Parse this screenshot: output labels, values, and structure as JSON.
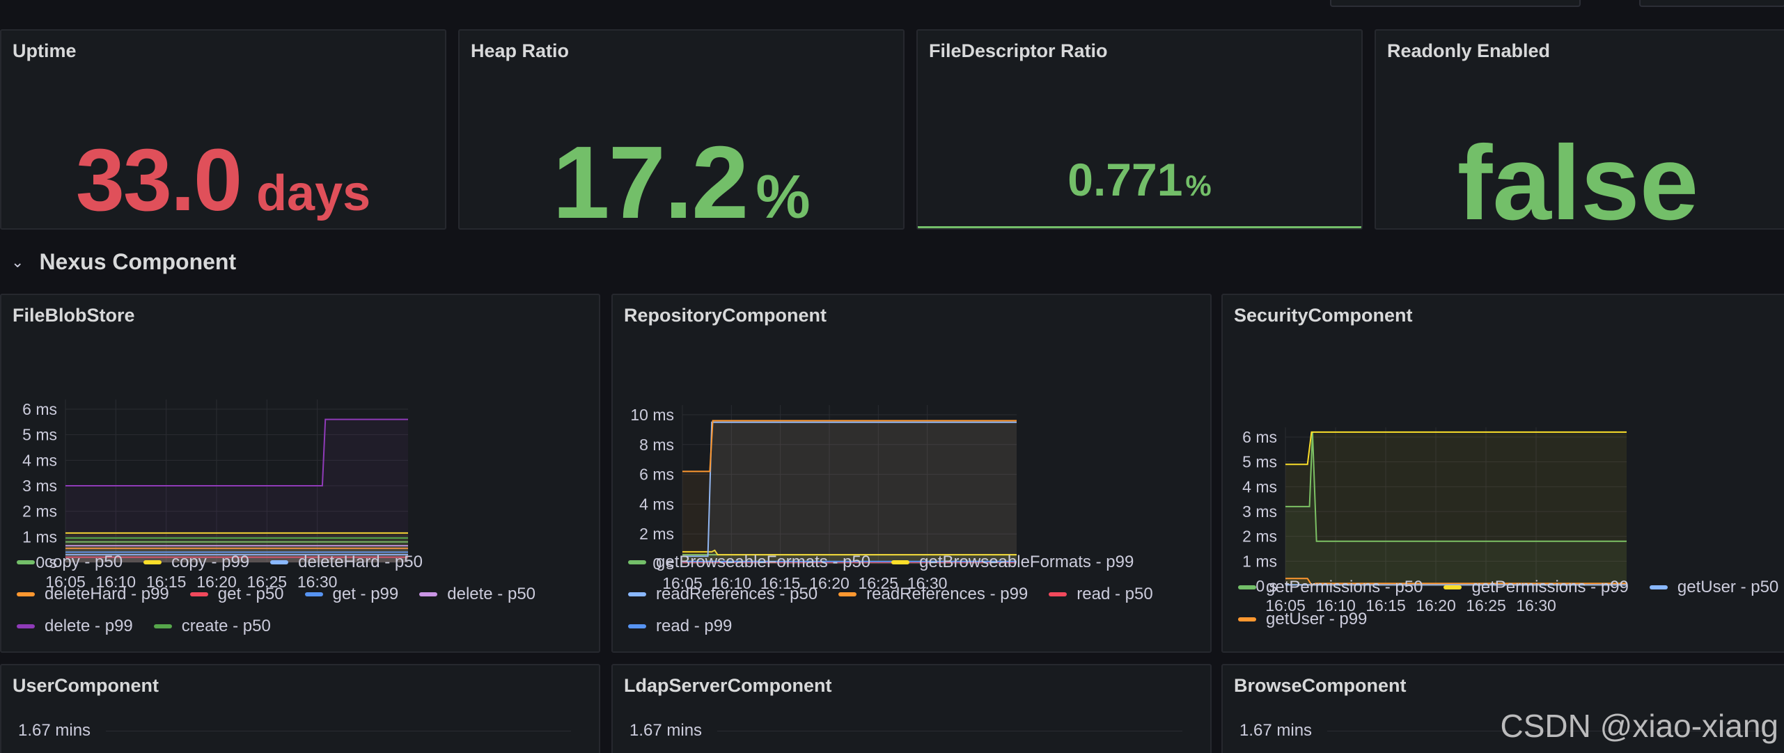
{
  "stats": [
    {
      "title": "Uptime",
      "value": "33.0",
      "unit": "days",
      "color": "#e0505a"
    },
    {
      "title": "Heap Ratio",
      "value": "17.2",
      "unit": "%",
      "color": "#73bf69"
    },
    {
      "title": "FileDescriptor Ratio",
      "value": "0.771",
      "unit": "%",
      "color": "#73bf69"
    },
    {
      "title": "Readonly Enabled",
      "value": "false",
      "unit": "",
      "color": "#73bf69"
    }
  ],
  "row": {
    "title": "Nexus Component"
  },
  "panels": [
    {
      "title": "FileBlobStore",
      "chart_data": {
        "type": "line",
        "x": [
          "16:05",
          "16:10",
          "16:15",
          "16:20",
          "16:25",
          "16:30"
        ],
        "yticks": [
          "6 ms",
          "5 ms",
          "4 ms",
          "3 ms",
          "2 ms",
          "1 ms",
          "0 s"
        ],
        "ylim": [
          0,
          6
        ],
        "xrange_minutes": [
          0,
          30
        ],
        "series": [
          {
            "name": "copy - p50",
            "color": "#73bf69",
            "points": [
              [
                0,
                0.8
              ],
              [
                30,
                0.8
              ]
            ]
          },
          {
            "name": "copy - p99",
            "color": "#fade2a",
            "points": [
              [
                0,
                1.15
              ],
              [
                30,
                1.15
              ]
            ]
          },
          {
            "name": "deleteHard - p50",
            "color": "#8ab8ff",
            "points": [
              [
                0,
                0.3
              ],
              [
                30,
                0.3
              ]
            ]
          },
          {
            "name": "deleteHard - p99",
            "color": "#ff9830",
            "points": [
              [
                0,
                0.55
              ],
              [
                30,
                0.55
              ]
            ]
          },
          {
            "name": "get - p50",
            "color": "#f2495c",
            "points": [
              [
                0,
                0.2
              ],
              [
                30,
                0.2
              ]
            ]
          },
          {
            "name": "get - p99",
            "color": "#5794f2",
            "points": [
              [
                0,
                0.4
              ],
              [
                30,
                0.4
              ]
            ]
          },
          {
            "name": "delete - p50",
            "color": "#ca95e5",
            "points": [
              [
                0,
                0.65
              ],
              [
                30,
                0.65
              ]
            ]
          },
          {
            "name": "delete - p99",
            "color": "#8f3bb8",
            "points": [
              [
                0,
                3.0
              ],
              [
                25.5,
                3.0
              ],
              [
                25.8,
                5.6
              ],
              [
                30,
                5.6
              ]
            ]
          },
          {
            "name": "create - p50",
            "color": "#56a64b",
            "points": [
              [
                0,
                0.95
              ],
              [
                30,
                0.95
              ]
            ]
          }
        ]
      }
    },
    {
      "title": "RepositoryComponent",
      "chart_data": {
        "type": "line",
        "x": [
          "16:05",
          "16:10",
          "16:15",
          "16:20",
          "16:25",
          "16:30"
        ],
        "yticks": [
          "10 ms",
          "8 ms",
          "6 ms",
          "4 ms",
          "2 ms",
          "0 s"
        ],
        "ylim": [
          0,
          10
        ],
        "xrange_minutes": [
          0,
          30
        ],
        "series": [
          {
            "name": "getBrowseableFormats - p50",
            "color": "#73bf69",
            "points": [
              [
                0,
                0.6
              ],
              [
                30,
                0.6
              ]
            ]
          },
          {
            "name": "getBrowseableFormats - p99",
            "color": "#fade2a",
            "points": [
              [
                0,
                0.8
              ],
              [
                3.0,
                0.8
              ],
              [
                3.3,
                0.9
              ],
              [
                3.6,
                0.6
              ],
              [
                30,
                0.6
              ]
            ]
          },
          {
            "name": "readReferences - p50",
            "color": "#8ab8ff",
            "points": [
              [
                0,
                0.5
              ],
              [
                2.6,
                0.5
              ],
              [
                3.0,
                9.5
              ],
              [
                30,
                9.5
              ]
            ]
          },
          {
            "name": "readReferences - p99",
            "color": "#ff9830",
            "points": [
              [
                0,
                6.2
              ],
              [
                2.8,
                6.2
              ],
              [
                3.1,
                9.6
              ],
              [
                30,
                9.6
              ]
            ]
          },
          {
            "name": "read - p50",
            "color": "#f2495c",
            "points": [
              [
                0,
                0.1
              ],
              [
                30,
                0.1
              ]
            ]
          },
          {
            "name": "read - p99",
            "color": "#5794f2",
            "points": [
              [
                0,
                0.15
              ],
              [
                30,
                0.15
              ]
            ]
          }
        ]
      }
    },
    {
      "title": "SecurityComponent",
      "chart_data": {
        "type": "line",
        "x": [
          "16:05",
          "16:10",
          "16:15",
          "16:20",
          "16:25",
          "16:30"
        ],
        "yticks": [
          "6 ms",
          "5 ms",
          "4 ms",
          "3 ms",
          "2 ms",
          "1 ms",
          "0 s"
        ],
        "ylim": [
          0,
          6
        ],
        "xrange_minutes": [
          0,
          30
        ],
        "series": [
          {
            "name": "getPermissions - p50",
            "color": "#73bf69",
            "points": [
              [
                0,
                3.2
              ],
              [
                2.4,
                3.2
              ],
              [
                2.7,
                6.2
              ],
              [
                3.1,
                1.8
              ],
              [
                30,
                1.8
              ]
            ]
          },
          {
            "name": "getPermissions - p99",
            "color": "#fade2a",
            "points": [
              [
                0,
                4.9
              ],
              [
                2.2,
                4.9
              ],
              [
                2.6,
                6.2
              ],
              [
                30,
                6.2
              ]
            ]
          },
          {
            "name": "getUser - p50",
            "color": "#8ab8ff",
            "points": [
              [
                0,
                0.05
              ],
              [
                30,
                0.05
              ]
            ]
          },
          {
            "name": "getUser - p99",
            "color": "#ff9830",
            "points": [
              [
                0,
                0.3
              ],
              [
                2.2,
                0.3
              ],
              [
                2.6,
                0.05
              ],
              [
                3.0,
                0.1
              ],
              [
                30,
                0.1
              ]
            ]
          }
        ]
      }
    }
  ],
  "bottom_panels": [
    {
      "title": "UserComponent",
      "ytick": "1.67 mins"
    },
    {
      "title": "LdapServerComponent",
      "ytick": "1.67 mins"
    },
    {
      "title": "BrowseComponent",
      "ytick": "1.67 mins"
    }
  ],
  "watermark": "CSDN @xiao-xiang"
}
